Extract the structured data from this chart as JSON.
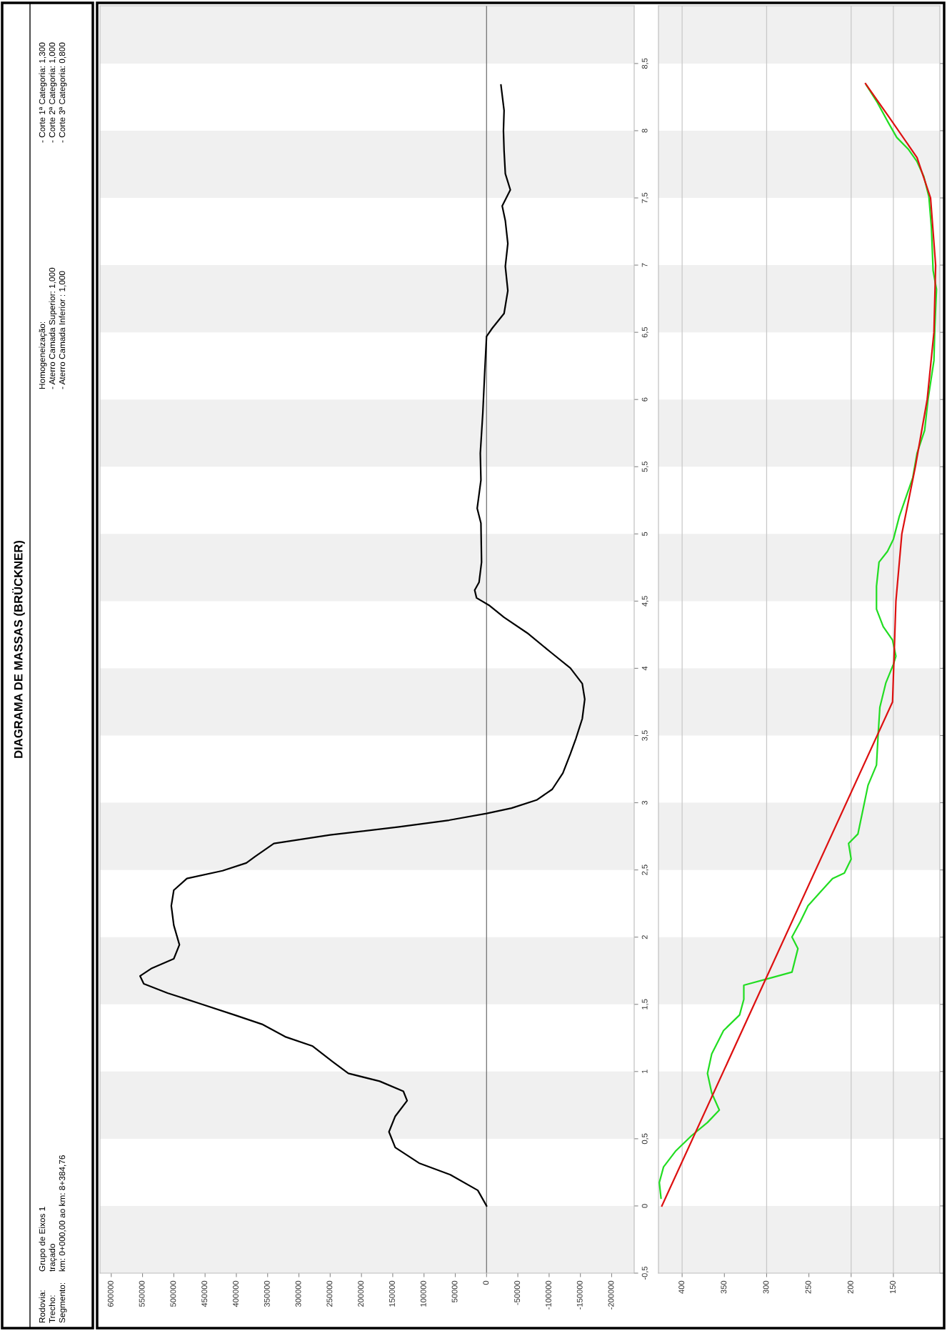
{
  "chart_data": [
    {
      "type": "other",
      "title": "DIAGRAMA DE MASSAS (BRÜCKNER)",
      "annotations": [
        "Rodovia:",
        "Grupo de Eixos 1",
        "Trecho:",
        "traçado",
        "Segmento:",
        "km: 0+000,00 ao km: 8+384,76",
        "Homogeneização:",
        "- Aterro Camada Superior: 1,000",
        "- Aterro Camada Inferior : 1,000",
        "- Corte 1ª Categoria: 1,300",
        "- Corte 2ª Categoria: 1,000",
        "- Corte 3ª Categoria: 0,800"
      ]
    },
    {
      "type": "line",
      "ylim": [
        -0.5,
        8.93
      ],
      "yticks": [
        {
          "value": -0.5,
          "label": "-0,5"
        },
        0,
        {
          "value": 0.5,
          "label": "0,5"
        },
        1,
        {
          "value": 1.5,
          "label": "1,5"
        },
        2,
        {
          "value": 2.5,
          "label": "2,5"
        },
        3,
        {
          "value": 3.5,
          "label": "3,5"
        },
        4,
        {
          "value": 4.5,
          "label": "4,5"
        },
        5,
        {
          "value": 5.5,
          "label": "5,5"
        },
        6,
        {
          "value": 6.5,
          "label": "6,5"
        },
        7,
        {
          "value": 7.5,
          "label": "7,5"
        },
        8,
        {
          "value": 8.5,
          "label": "8,5"
        }
      ],
      "xlim": [
        618000,
        -236000
      ],
      "xticks": [
        600000,
        550000,
        500000,
        450000,
        400000,
        350000,
        300000,
        250000,
        200000,
        150000,
        100000,
        50000,
        0,
        -50000,
        -100000,
        -150000,
        -200000
      ],
      "grid": false,
      "marker": "none",
      "line_style": "solid",
      "bands": [
        {
          "axis": "y",
          "from": -0.5,
          "to": 0,
          "color": "#f0f0f0"
        },
        {
          "axis": "y",
          "from": 0.5,
          "to": 1,
          "color": "#f0f0f0"
        },
        {
          "axis": "y",
          "from": 1.5,
          "to": 2,
          "color": "#f0f0f0"
        },
        {
          "axis": "y",
          "from": 2.5,
          "to": 3,
          "color": "#f0f0f0"
        },
        {
          "axis": "y",
          "from": 3.5,
          "to": 4,
          "color": "#f0f0f0"
        },
        {
          "axis": "y",
          "from": 4.5,
          "to": 5,
          "color": "#f0f0f0"
        },
        {
          "axis": "y",
          "from": 5.5,
          "to": 6,
          "color": "#f0f0f0"
        },
        {
          "axis": "y",
          "from": 6.5,
          "to": 7,
          "color": "#f0f0f0"
        },
        {
          "axis": "y",
          "from": 7.5,
          "to": 8,
          "color": "#f0f0f0"
        },
        {
          "axis": "y",
          "from": 8.5,
          "to": 8.93,
          "color": "#f0f0f0"
        }
      ],
      "ref_lines": [
        {
          "axis": "x",
          "value": 0,
          "color": "#707070"
        }
      ],
      "series": [
        {
          "color": "#000000",
          "values": [
            0,
            0.116,
            0.232,
            0.319,
            0.435,
            0.551,
            0.667,
            0.783,
            0.853,
            0.928,
            0.986,
            1.073,
            1.189,
            1.259,
            1.352,
            1.421,
            1.508,
            1.584,
            1.653,
            1.711,
            1.769,
            1.839,
            1.943,
            2.088,
            2.233,
            2.349,
            2.436,
            2.494,
            2.552,
            2.6,
            2.697,
            2.76,
            2.82,
            2.87,
            2.92,
            2.96,
            3.02,
            3.1,
            3.22,
            3.364,
            3.48,
            3.625,
            3.77,
            3.886,
            4.002,
            4.118,
            4.263,
            4.379,
            4.466,
            4.524,
            4.582,
            4.64,
            4.79,
            5.08,
            5.19,
            5.4,
            5.6,
            5.9,
            6.2,
            6.47,
            6.53,
            6.64,
            6.81,
            6.99,
            7.16,
            7.33,
            7.44,
            7.56,
            7.68,
            7.85,
            8.0,
            8.15,
            8.34
          ],
          "x": [
            0,
            14000,
            58000,
            108000,
            146000,
            156000,
            146000,
            127000,
            133000,
            171000,
            221000,
            246000,
            278000,
            322000,
            359000,
            403000,
            460000,
            510000,
            548000,
            554000,
            535000,
            500000,
            491000,
            500000,
            504000,
            500000,
            479000,
            422000,
            384000,
            370000,
            340000,
            250000,
            140000,
            60000,
            0,
            -40000,
            -80000,
            -105000,
            -122000,
            -134000,
            -143000,
            -153000,
            -157000,
            -153000,
            -134000,
            -103000,
            -65000,
            -28000,
            -5000,
            16000,
            19000,
            12000,
            8000,
            9000,
            15000,
            9000,
            10000,
            6000,
            3000,
            0,
            -9000,
            -28000,
            -34000,
            -30000,
            -34000,
            -30000,
            -25000,
            -38000,
            -30000,
            -28000,
            -27000,
            -28000,
            -23000
          ]
        }
      ]
    },
    {
      "type": "line",
      "ylim": [
        -0.5,
        8.93
      ],
      "yticks": [
        {
          "value": -0.5,
          "label": null
        },
        {
          "value": 0,
          "label": null
        },
        {
          "value": 0.5,
          "label": null
        },
        {
          "value": 1,
          "label": null
        },
        {
          "value": 1.5,
          "label": null
        },
        {
          "value": 2,
          "label": null
        },
        {
          "value": 2.5,
          "label": null
        },
        {
          "value": 3,
          "label": null
        },
        {
          "value": 3.5,
          "label": null
        },
        {
          "value": 4,
          "label": null
        },
        {
          "value": 4.5,
          "label": null
        },
        {
          "value": 5,
          "label": null
        },
        {
          "value": 5.5,
          "label": null
        },
        {
          "value": 6,
          "label": null
        },
        {
          "value": 6.5,
          "label": null
        },
        {
          "value": 7,
          "label": null
        },
        {
          "value": 7.5,
          "label": null
        },
        {
          "value": 8,
          "label": null
        },
        {
          "value": 8.5,
          "label": null
        }
      ],
      "xlim": [
        428,
        95
      ],
      "xticks": [
        400,
        350,
        300,
        250,
        200,
        150
      ],
      "tick_labels": "x",
      "grid": false,
      "marker": "none",
      "line_style": "solid",
      "bands": [
        {
          "axis": "y",
          "from": -0.5,
          "to": 0,
          "color": "#f0f0f0"
        },
        {
          "axis": "y",
          "from": 0.5,
          "to": 1,
          "color": "#f0f0f0"
        },
        {
          "axis": "y",
          "from": 1.5,
          "to": 2,
          "color": "#f0f0f0"
        },
        {
          "axis": "y",
          "from": 2.5,
          "to": 3,
          "color": "#f0f0f0"
        },
        {
          "axis": "y",
          "from": 3.5,
          "to": 4,
          "color": "#f0f0f0"
        },
        {
          "axis": "y",
          "from": 4.5,
          "to": 5,
          "color": "#f0f0f0"
        },
        {
          "axis": "y",
          "from": 5.5,
          "to": 6,
          "color": "#f0f0f0"
        },
        {
          "axis": "y",
          "from": 6.5,
          "to": 7,
          "color": "#f0f0f0"
        },
        {
          "axis": "y",
          "from": 7.5,
          "to": 8,
          "color": "#f0f0f0"
        },
        {
          "axis": "y",
          "from": 8.5,
          "to": 8.93,
          "color": "#f0f0f0"
        }
      ],
      "ref_lines": [
        {
          "axis": "x",
          "value": 400,
          "color": "#c8c8c8"
        },
        {
          "axis": "x",
          "value": 300,
          "color": "#c8c8c8"
        },
        {
          "axis": "x",
          "value": 200,
          "color": "#c8c8c8"
        },
        {
          "axis": "x",
          "value": 150,
          "color": "#c8c8c8"
        }
      ],
      "series": [
        {
          "color": "#22dd22",
          "values": [
            0.058,
            0.174,
            0.29,
            0.406,
            0.522,
            0.621,
            0.713,
            0.841,
            0.986,
            1.131,
            1.305,
            1.421,
            1.537,
            1.642,
            1.7,
            1.74,
            1.914,
            2.001,
            2.117,
            2.233,
            2.338,
            2.436,
            2.477,
            2.581,
            2.697,
            2.767,
            3.13,
            3.28,
            3.51,
            3.71,
            3.89,
            4.03,
            4.09,
            4.21,
            4.31,
            4.44,
            4.61,
            4.79,
            4.87,
            4.96,
            5.13,
            5.42,
            5.6,
            5.77,
            6.0,
            6.29,
            6.53,
            6.82,
            6.96,
            7.28,
            7.51,
            7.66,
            7.77,
            7.86,
            7.95,
            8.06,
            8.21,
            8.34
          ],
          "x": [
            425,
            427,
            422,
            408,
            389,
            370,
            356,
            365,
            370,
            365,
            351,
            332,
            327,
            327,
            293,
            270,
            263,
            270,
            260,
            251,
            236,
            222,
            208,
            200,
            203,
            192,
            180,
            170,
            168,
            166,
            159,
            150,
            147,
            151,
            162,
            170,
            170,
            167,
            157,
            150,
            143,
            127,
            122,
            113,
            109,
            102,
            101,
            99,
            103,
            105,
            108,
            114,
            122,
            132,
            146,
            156,
            169,
            182
          ]
        },
        {
          "color": "#dd1111",
          "values": [
            0,
            3.75,
            4.5,
            5.0,
            5.5,
            6.0,
            6.5,
            7.0,
            7.5,
            7.8,
            8.1,
            8.35
          ],
          "x": [
            424,
            151,
            147,
            140,
            124,
            110,
            102,
            100,
            106,
            122,
            155,
            183
          ]
        }
      ]
    }
  ]
}
